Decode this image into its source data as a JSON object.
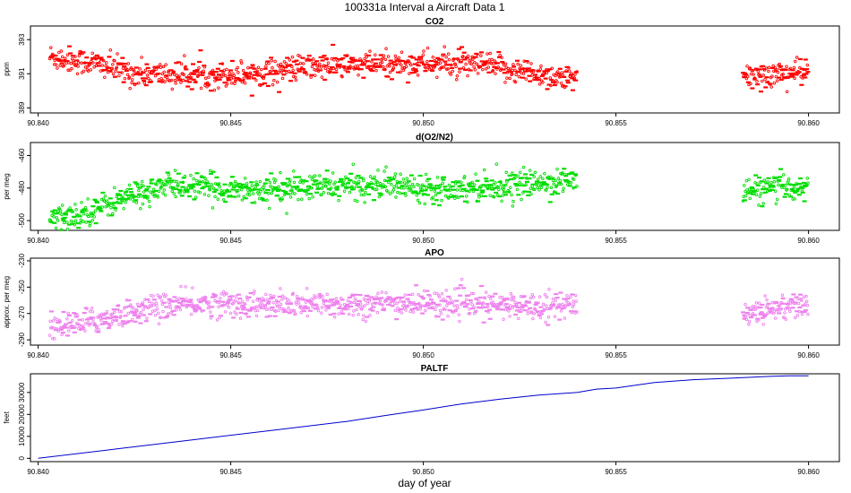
{
  "figure": {
    "title": "100331a   Interval a Aircraft Data 1",
    "xlabel": "day of year"
  },
  "chart_data": [
    {
      "type": "scatter",
      "title": "CO2",
      "ylabel": "ppm",
      "color": "#ff0000",
      "xlim": [
        90.8398,
        90.8608
      ],
      "ylim": [
        388.7,
        393.8
      ],
      "xticks": [
        90.84,
        90.845,
        90.85,
        90.855,
        90.86
      ],
      "xtick_labels": [
        "90.840",
        "90.845",
        "90.850",
        "90.855",
        "90.860"
      ],
      "yticks": [
        389,
        391,
        393
      ],
      "ytick_labels": [
        "389",
        "391",
        "393"
      ],
      "segments": [
        {
          "x": [
            90.8403,
            90.8415,
            90.8425,
            90.844,
            90.8455,
            90.847,
            90.8485,
            90.85,
            90.8515,
            90.853,
            90.854
          ],
          "y": [
            392.0,
            391.6,
            391.0,
            390.9,
            391.0,
            391.4,
            391.5,
            391.6,
            391.5,
            391.0,
            390.6
          ]
        },
        {
          "x": [
            90.8583,
            90.8592,
            90.86
          ],
          "y": [
            390.8,
            391.0,
            391.1
          ]
        }
      ]
    },
    {
      "type": "scatter",
      "title": "d(O2/N2)",
      "ylabel": "per meg",
      "color": "#00dd00",
      "xlim": [
        90.8398,
        90.8608
      ],
      "ylim": [
        -506,
        -452
      ],
      "xticks": [
        90.84,
        90.845,
        90.85,
        90.855,
        90.86
      ],
      "xtick_labels": [
        "90.840",
        "90.845",
        "90.850",
        "90.855",
        "90.860"
      ],
      "yticks": [
        -500,
        -480,
        -460
      ],
      "ytick_labels": [
        "-500",
        "-480",
        "-460"
      ],
      "segments": [
        {
          "x": [
            90.8403,
            90.841,
            90.8418,
            90.8425,
            90.8435,
            90.8445,
            90.846,
            90.8475,
            90.849,
            90.8505,
            90.852,
            90.853,
            90.854
          ],
          "y": [
            -499,
            -497,
            -490,
            -484,
            -478,
            -480,
            -481,
            -479,
            -478,
            -480,
            -479,
            -477,
            -475
          ]
        },
        {
          "x": [
            90.8583,
            90.8592,
            90.86
          ],
          "y": [
            -482,
            -480,
            -479
          ]
        }
      ]
    },
    {
      "type": "scatter",
      "title": "APO",
      "ylabel": "approx. per meg",
      "color": "#ee82ee",
      "xlim": [
        90.8398,
        90.8608
      ],
      "ylim": [
        -294,
        -228
      ],
      "xticks": [
        90.84,
        90.845,
        90.85,
        90.855,
        90.86
      ],
      "xtick_labels": [
        "90.840",
        "90.845",
        "90.850",
        "90.855",
        "90.860"
      ],
      "yticks": [
        -290,
        -270,
        -250,
        -230
      ],
      "ytick_labels": [
        "-290",
        "-270",
        "-250",
        "-230"
      ],
      "segments": [
        {
          "x": [
            90.8403,
            90.8412,
            90.842,
            90.843,
            90.8445,
            90.846,
            90.848,
            90.85,
            90.852,
            90.854
          ],
          "y": [
            -280,
            -277,
            -272,
            -265,
            -262,
            -264,
            -263,
            -262,
            -264,
            -264
          ]
        },
        {
          "x": [
            90.8583,
            90.8592,
            90.86
          ],
          "y": [
            -270,
            -265,
            -263
          ]
        }
      ]
    },
    {
      "type": "line",
      "title": "PALTF",
      "ylabel": "feet",
      "color": "#0000cc",
      "xlim": [
        90.8398,
        90.8608
      ],
      "ylim": [
        -1500,
        38500
      ],
      "xticks": [
        90.84,
        90.845,
        90.85,
        90.855,
        90.86
      ],
      "xtick_labels": [
        "90.840",
        "90.845",
        "90.850",
        "90.855",
        "90.860"
      ],
      "yticks": [
        0,
        10000,
        20000,
        30000
      ],
      "ytick_labels": [
        "0",
        "10000",
        "20000",
        "30000"
      ],
      "x": [
        90.84,
        90.842,
        90.844,
        90.846,
        90.848,
        90.849,
        90.85,
        90.851,
        90.852,
        90.853,
        90.854,
        90.8545,
        90.855,
        90.856,
        90.857,
        90.858,
        90.859,
        90.8595,
        90.86
      ],
      "y": [
        0,
        4200,
        8400,
        12600,
        16800,
        19500,
        22000,
        24800,
        27000,
        28800,
        30000,
        31500,
        32000,
        34500,
        35800,
        36500,
        37300,
        37600,
        37600
      ]
    }
  ]
}
